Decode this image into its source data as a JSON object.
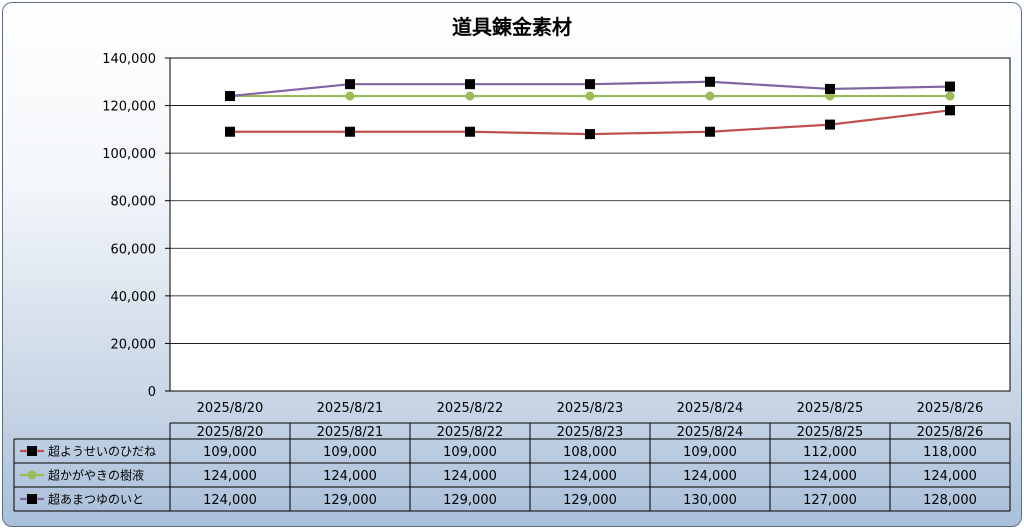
{
  "chart_data": {
    "type": "line",
    "title": "道具錬金素材",
    "categories": [
      "2025/8/20",
      "2025/8/21",
      "2025/8/22",
      "2025/8/23",
      "2025/8/24",
      "2025/8/25",
      "2025/8/26"
    ],
    "ylim": [
      0,
      140000
    ],
    "yticks": [
      0,
      20000,
      40000,
      60000,
      80000,
      100000,
      120000,
      140000
    ],
    "ytick_labels": [
      "0",
      "20,000",
      "40,000",
      "60,000",
      "80,000",
      "100,000",
      "120,000",
      "140,000"
    ],
    "grid": true,
    "legend": "data table below chart",
    "series": [
      {
        "name": "超ようせいのひだね",
        "color": "#c0504d",
        "marker": "square",
        "marker_color": "#000000",
        "values": [
          109000,
          109000,
          109000,
          108000,
          109000,
          112000,
          118000
        ],
        "labels": [
          "109,000",
          "109,000",
          "109,000",
          "108,000",
          "109,000",
          "112,000",
          "118,000"
        ]
      },
      {
        "name": "超かがやきの樹液",
        "color": "#9bbb59",
        "marker": "circle",
        "marker_color": "#9bbb59",
        "values": [
          124000,
          124000,
          124000,
          124000,
          124000,
          124000,
          124000
        ],
        "labels": [
          "124,000",
          "124,000",
          "124,000",
          "124,000",
          "124,000",
          "124,000",
          "124,000"
        ]
      },
      {
        "name": "超あまつゆのいと",
        "color": "#8064a2",
        "marker": "square",
        "marker_color": "#000000",
        "values": [
          124000,
          129000,
          129000,
          129000,
          130000,
          127000,
          128000
        ],
        "labels": [
          "124,000",
          "129,000",
          "129,000",
          "129,000",
          "130,000",
          "127,000",
          "128,000"
        ]
      }
    ]
  }
}
